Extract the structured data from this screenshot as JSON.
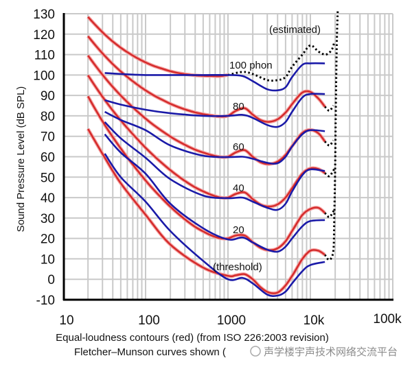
{
  "chart_data": {
    "type": "line",
    "xlabel": "Equal-loudness contours (red) (from ISO 226:2003 revision)",
    "xlabel_line2": "Fletcher–Munson curves shown (",
    "ylabel": "Sound Pressure Level (dB SPL)",
    "x_scale": "log",
    "xlim": [
      10,
      100000
    ],
    "ylim": [
      -10,
      130
    ],
    "grid": true,
    "x_ticks": [
      "10",
      "100",
      "1000",
      "10k",
      "100k"
    ],
    "y_ticks": [
      "130",
      "120",
      "110",
      "100",
      "90",
      "80",
      "70",
      "60",
      "50",
      "40",
      "30",
      "20",
      "10",
      "0",
      "-10"
    ],
    "annotations": {
      "estimated": "(estimated)",
      "p100": "100 phon",
      "p80": "80",
      "p60": "60",
      "p40": "40",
      "p20": "20",
      "threshold": "(threshold)"
    },
    "colors": {
      "red": "#d42a2a",
      "red_halo": "#f4a0a0",
      "blue": "#1a1aa8",
      "dotted": "#000000",
      "grid": "#c9c9c9"
    },
    "red_series": [
      {
        "label": "100",
        "x": [
          20,
          25,
          31.5,
          40,
          50,
          63,
          80,
          100,
          125,
          160,
          200,
          250,
          315,
          400,
          500,
          630,
          800,
          1000
        ],
        "y": [
          128.41,
          124.15,
          120.11,
          116.38,
          113.35,
          110.65,
          108.16,
          106.17,
          104.48,
          103.03,
          101.85,
          100.97,
          100.3,
          99.83,
          99.62,
          99.5,
          99.44,
          100.01
        ]
      },
      {
        "label": "80",
        "x": [
          20,
          25,
          31.5,
          40,
          50,
          63,
          80,
          100,
          125,
          160,
          200,
          250,
          315,
          400,
          500,
          630,
          800,
          1000,
          1250,
          1600,
          2000,
          2500,
          3150,
          4000,
          5000,
          6300,
          8000,
          10000,
          12500,
          15000
        ],
        "y": [
          118.99,
          114.23,
          109.65,
          105.34,
          101.72,
          98.36,
          95.17,
          92.48,
          90.09,
          87.82,
          85.92,
          84.31,
          82.89,
          81.68,
          80.86,
          80.17,
          79.67,
          80.01,
          82.48,
          83.74,
          80.59,
          77.88,
          77.07,
          78.31,
          81.62,
          86.81,
          91.41,
          91.74,
          88.5,
          84.5
        ]
      },
      {
        "label": "60",
        "x": [
          20,
          25,
          31.5,
          40,
          50,
          63,
          80,
          100,
          125,
          160,
          200,
          250,
          315,
          400,
          500,
          630,
          800,
          1000,
          1250,
          1600,
          2000,
          2500,
          3150,
          4000,
          5000,
          6300,
          8000,
          10000,
          12500,
          15000
        ],
        "y": [
          109.51,
          104.23,
          99.08,
          94.18,
          89.96,
          85.94,
          82.05,
          78.65,
          75.56,
          72.47,
          69.86,
          67.53,
          65.39,
          63.45,
          62.05,
          60.81,
          59.89,
          60.01,
          62.15,
          63.19,
          59.96,
          57.26,
          56.42,
          57.57,
          60.89,
          66.36,
          71.66,
          73.16,
          71.5,
          67.5
        ]
      },
      {
        "label": "40",
        "x": [
          20,
          25,
          31.5,
          40,
          50,
          63,
          80,
          100,
          125,
          160,
          200,
          250,
          315,
          400,
          500,
          630,
          800,
          1000,
          1250,
          1600,
          2000,
          2500,
          3150,
          4000,
          5000,
          6300,
          8000,
          10000,
          12500,
          15000
        ],
        "y": [
          99.85,
          93.94,
          88.17,
          82.63,
          77.78,
          73.08,
          68.48,
          64.37,
          60.59,
          56.7,
          53.41,
          50.4,
          47.58,
          44.98,
          43.05,
          41.34,
          40.06,
          40.01,
          41.82,
          42.51,
          39.23,
          36.51,
          35.61,
          36.65,
          40.01,
          45.83,
          51.8,
          54.28,
          54.0,
          52.0
        ]
      },
      {
        "label": "20",
        "x": [
          20,
          25,
          31.5,
          40,
          50,
          63,
          80,
          100,
          125,
          160,
          200,
          250,
          315,
          400,
          500,
          630,
          800,
          1000,
          1250,
          1600,
          2000,
          2500,
          3150,
          4000,
          5000,
          6300,
          8000,
          10000,
          12500,
          15000
        ],
        "y": [
          89.58,
          82.65,
          75.98,
          69.62,
          64.02,
          58.55,
          53.19,
          48.38,
          43.94,
          39.37,
          35.51,
          31.99,
          28.69,
          25.67,
          23.43,
          21.48,
          20.1,
          20.01,
          21.46,
          21.4,
          18.15,
          15.38,
          14.26,
          15.14,
          18.63,
          25.02,
          31.52,
          34.43,
          35.0,
          32.5
        ]
      },
      {
        "label": "threshold",
        "x": [
          20,
          31.5,
          50,
          100,
          200,
          500,
          1000,
          1250,
          1600,
          2000,
          2500,
          3150,
          4000,
          5000,
          6300,
          8000,
          10000,
          12500,
          15000
        ],
        "y": [
          73.6,
          60,
          47,
          31.6,
          17,
          5.7,
          1.7,
          2,
          2.5,
          0,
          -4,
          -6.5,
          -6.5,
          -3,
          3,
          10,
          14,
          14,
          12
        ]
      }
    ],
    "blue_series": [
      {
        "label": "100",
        "x": [
          32,
          50,
          100,
          200,
          500,
          1000,
          1500,
          2000,
          3000,
          4000,
          5000,
          6000,
          8000,
          10000,
          15000
        ],
        "y": [
          101,
          100.5,
          100,
          100,
          100,
          100,
          99.5,
          97,
          93,
          92.5,
          94,
          99,
          105,
          105.7,
          105.7
        ]
      },
      {
        "label": "80",
        "x": [
          32,
          50,
          100,
          200,
          500,
          1000,
          1500,
          2000,
          3000,
          4000,
          5000,
          6000,
          8000,
          10000,
          15000
        ],
        "y": [
          87.7,
          85.5,
          83,
          81.3,
          80,
          80,
          80.5,
          79,
          75.5,
          74.6,
          77,
          82,
          89,
          90.7,
          90.7
        ]
      },
      {
        "label": "60",
        "x": [
          32,
          50,
          100,
          200,
          500,
          1000,
          1500,
          2000,
          3000,
          4000,
          5000,
          6000,
          8000,
          10000,
          15000
        ],
        "y": [
          82,
          78,
          73,
          65.5,
          60.5,
          59.8,
          60,
          59,
          57,
          56.8,
          60,
          65,
          71,
          73,
          72.5
        ]
      },
      {
        "label": "40",
        "x": [
          32,
          50,
          100,
          200,
          500,
          1000,
          1500,
          2000,
          3000,
          4000,
          5000,
          6000,
          8000,
          10000,
          15000
        ],
        "y": [
          77,
          69,
          59.5,
          49,
          41,
          39.7,
          40,
          38,
          35,
          34,
          37,
          43,
          51,
          53.8,
          53
        ]
      },
      {
        "label": "20",
        "x": [
          32,
          50,
          100,
          200,
          500,
          1000,
          1500,
          2000,
          3000,
          4000,
          5000,
          6000,
          8000,
          10000,
          15000
        ],
        "y": [
          71,
          62,
          51.7,
          37,
          25,
          19.5,
          20.5,
          18,
          14.5,
          13.5,
          16,
          20,
          26,
          28.5,
          29
        ]
      },
      {
        "label": "threshold",
        "x": [
          32,
          50,
          100,
          200,
          500,
          1000,
          1500,
          2000,
          3000,
          4000,
          5000,
          6000,
          8000,
          10000,
          15000
        ],
        "y": [
          61.5,
          50,
          38,
          23.6,
          9,
          0,
          0.7,
          -2,
          -7.5,
          -8,
          -6,
          -2,
          4,
          7,
          8.5
        ]
      }
    ],
    "estimated_series": [
      {
        "label": "100 estimated",
        "x": [
          1000,
          1500,
          2000,
          3000,
          4000,
          5000,
          6000,
          8000,
          10000,
          12500,
          15000,
          17000,
          18500,
          19500
        ],
        "y": [
          100,
          101.5,
          100.5,
          97.5,
          97.5,
          99,
          104,
          110,
          114.5,
          111.5,
          110,
          111,
          113,
          116
        ]
      },
      {
        "label": "high-frequency limit",
        "x": [
          15000,
          17000,
          19000,
          19500,
          20000,
          20300,
          20600,
          20900,
          21200,
          21500
        ],
        "y": [
          12,
          9.5,
          14,
          30,
          55,
          80,
          100,
          115,
          125,
          132
        ]
      },
      {
        "label": "80 end",
        "x": [
          15000,
          17000,
          19000
        ],
        "y": [
          84.5,
          82.5,
          85
        ]
      },
      {
        "label": "60 end",
        "x": [
          15000,
          17000,
          19000
        ],
        "y": [
          67.5,
          65.5,
          68
        ]
      },
      {
        "label": "40 end",
        "x": [
          15000,
          17000,
          19500
        ],
        "y": [
          52,
          50.5,
          54
        ]
      },
      {
        "label": "20 end",
        "x": [
          15000,
          17000,
          19500
        ],
        "y": [
          32.5,
          30.5,
          34
        ]
      }
    ]
  },
  "watermark": "声学楼宇声技术网络交流平台"
}
